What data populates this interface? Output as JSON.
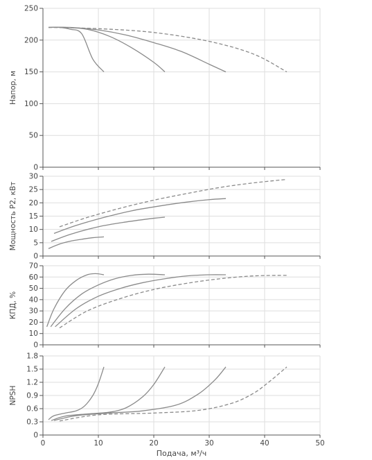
{
  "chart_data": [
    {
      "id": "head",
      "type": "line",
      "ylabel": "Напор, м",
      "ylim": [
        0,
        250
      ],
      "yticks": [
        0,
        50,
        100,
        150,
        200,
        250
      ],
      "xlim": [
        0,
        50
      ],
      "grid": true,
      "series": [
        {
          "style": "solid",
          "points": [
            [
              1,
              220
            ],
            [
              3,
              220
            ],
            [
              5,
              217
            ],
            [
              7,
              210
            ],
            [
              9,
              170
            ],
            [
              11,
              150
            ]
          ]
        },
        {
          "style": "solid",
          "points": [
            [
              1,
              220
            ],
            [
              4,
              220
            ],
            [
              8,
              217
            ],
            [
              12,
              206
            ],
            [
              16,
              188
            ],
            [
              20,
              165
            ],
            [
              22,
              150
            ]
          ]
        },
        {
          "style": "solid",
          "points": [
            [
              1,
              220
            ],
            [
              5,
              220
            ],
            [
              10,
              216
            ],
            [
              15,
              208
            ],
            [
              20,
              196
            ],
            [
              25,
              182
            ],
            [
              30,
              162
            ],
            [
              33,
              150
            ]
          ]
        },
        {
          "style": "dashed",
          "points": [
            [
              1,
              220
            ],
            [
              10,
              218
            ],
            [
              20,
              212
            ],
            [
              30,
              198
            ],
            [
              38,
              178
            ],
            [
              44,
              150
            ]
          ]
        }
      ]
    },
    {
      "id": "power",
      "type": "line",
      "ylabel": "Мощность P2, кВт",
      "ylim": [
        0,
        30
      ],
      "yticks": [
        0,
        5,
        10,
        15,
        20,
        25,
        30
      ],
      "xlim": [
        0,
        50
      ],
      "grid": true,
      "series": [
        {
          "style": "solid",
          "points": [
            [
              1,
              2.8
            ],
            [
              3,
              4.5
            ],
            [
              5,
              5.6
            ],
            [
              7,
              6.3
            ],
            [
              9,
              6.9
            ],
            [
              11,
              7.2
            ]
          ]
        },
        {
          "style": "solid",
          "points": [
            [
              1.5,
              5.5
            ],
            [
              5,
              8.2
            ],
            [
              10,
              11
            ],
            [
              15,
              12.8
            ],
            [
              20,
              14.2
            ],
            [
              22,
              14.6
            ]
          ]
        },
        {
          "style": "solid",
          "points": [
            [
              2,
              8.5
            ],
            [
              6,
              11.5
            ],
            [
              11,
              14.5
            ],
            [
              16,
              17
            ],
            [
              21,
              18.8
            ],
            [
              26,
              20.3
            ],
            [
              30,
              21.2
            ],
            [
              33,
              21.6
            ]
          ]
        },
        {
          "style": "dashed",
          "points": [
            [
              3,
              11
            ],
            [
              8,
              14.5
            ],
            [
              14,
              18
            ],
            [
              20,
              21
            ],
            [
              26,
              23.5
            ],
            [
              32,
              25.8
            ],
            [
              38,
              27.5
            ],
            [
              44,
              28.8
            ]
          ]
        }
      ]
    },
    {
      "id": "efficiency",
      "type": "line",
      "ylabel": "КПД, %",
      "ylim": [
        0,
        70
      ],
      "yticks": [
        0,
        10,
        20,
        30,
        40,
        50,
        60,
        70
      ],
      "xlim": [
        0,
        50
      ],
      "grid": true,
      "series": [
        {
          "style": "solid",
          "points": [
            [
              0.7,
              16
            ],
            [
              2,
              32
            ],
            [
              4,
              48
            ],
            [
              6,
              57
            ],
            [
              8,
              62
            ],
            [
              9.5,
              63
            ],
            [
              11,
              62
            ]
          ]
        },
        {
          "style": "solid",
          "points": [
            [
              1.4,
              16
            ],
            [
              4,
              32
            ],
            [
              7,
              45
            ],
            [
              10,
              53
            ],
            [
              13,
              58.5
            ],
            [
              16,
              61.5
            ],
            [
              19,
              62.5
            ],
            [
              22,
              62
            ]
          ]
        },
        {
          "style": "solid",
          "points": [
            [
              2.2,
              16
            ],
            [
              6,
              32
            ],
            [
              10,
              43
            ],
            [
              14,
              50
            ],
            [
              18,
              55
            ],
            [
              22,
              58.5
            ],
            [
              26,
              61
            ],
            [
              30,
              62
            ],
            [
              33,
              62
            ]
          ]
        },
        {
          "style": "dashed",
          "points": [
            [
              3,
              15
            ],
            [
              8,
              30
            ],
            [
              14,
              41
            ],
            [
              20,
              49
            ],
            [
              26,
              54.5
            ],
            [
              32,
              58.5
            ],
            [
              38,
              61
            ],
            [
              44,
              61.5
            ]
          ]
        }
      ]
    },
    {
      "id": "npsh",
      "type": "line",
      "ylabel": "NPSH",
      "ylim": [
        0,
        1.8
      ],
      "yticks": [
        0,
        0.3,
        0.6,
        0.9,
        1.2,
        1.5,
        1.8
      ],
      "yticklabels": [
        "0",
        "0.3",
        "0.6",
        "0.9",
        "1.2",
        "1.5",
        "1.8"
      ],
      "xlim": [
        0,
        50
      ],
      "xticks": [
        0,
        10,
        20,
        30,
        40,
        50
      ],
      "xlabel": "Подача, м³/ч",
      "grid": true,
      "series": [
        {
          "style": "solid",
          "points": [
            [
              1,
              0.35
            ],
            [
              2,
              0.44
            ],
            [
              4,
              0.5
            ],
            [
              6,
              0.55
            ],
            [
              7.5,
              0.66
            ],
            [
              9,
              0.9
            ],
            [
              10,
              1.17
            ],
            [
              11,
              1.55
            ]
          ]
        },
        {
          "style": "solid",
          "points": [
            [
              1.5,
              0.33
            ],
            [
              4,
              0.43
            ],
            [
              8,
              0.48
            ],
            [
              12,
              0.52
            ],
            [
              15,
              0.62
            ],
            [
              18,
              0.87
            ],
            [
              20,
              1.15
            ],
            [
              22,
              1.55
            ]
          ]
        },
        {
          "style": "solid",
          "points": [
            [
              2,
              0.33
            ],
            [
              6,
              0.44
            ],
            [
              12,
              0.5
            ],
            [
              18,
              0.55
            ],
            [
              24,
              0.68
            ],
            [
              28,
              0.93
            ],
            [
              31,
              1.25
            ],
            [
              33,
              1.55
            ]
          ]
        },
        {
          "style": "dashed",
          "points": [
            [
              3,
              0.32
            ],
            [
              10,
              0.46
            ],
            [
              20,
              0.5
            ],
            [
              28,
              0.56
            ],
            [
              34,
              0.72
            ],
            [
              38,
              0.95
            ],
            [
              41,
              1.23
            ],
            [
              44,
              1.55
            ]
          ]
        }
      ]
    }
  ]
}
